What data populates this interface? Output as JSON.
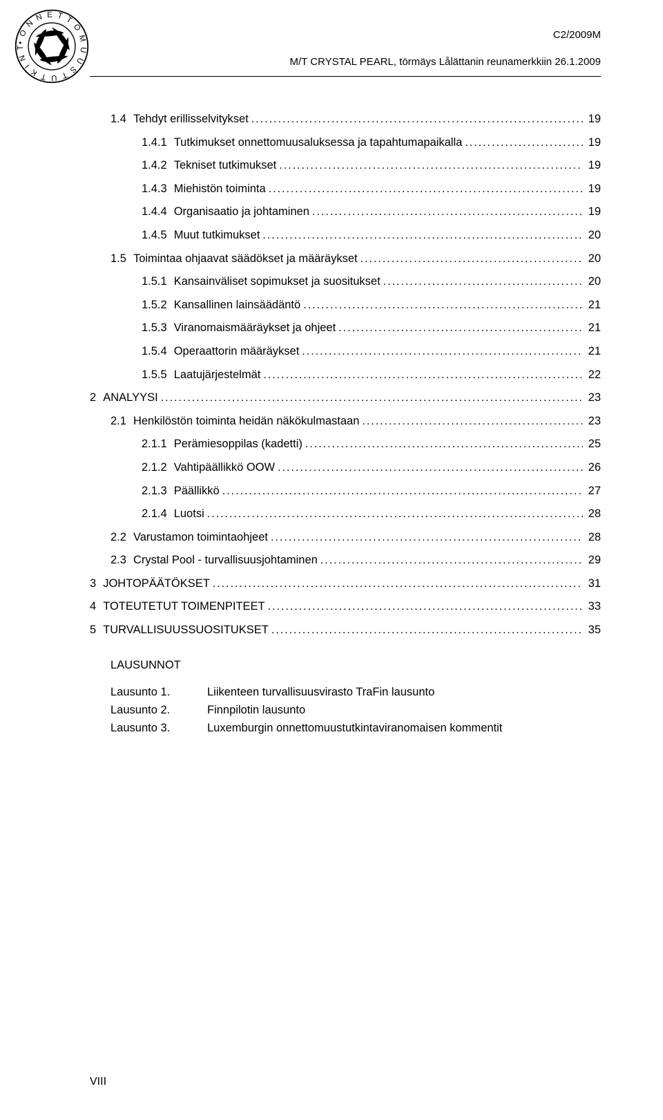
{
  "header": {
    "code": "C2/2009M",
    "title": "M/T CRYSTAL PEARL, törmäys Lålättanin reunamerkkiin 26.1.2009"
  },
  "toc": [
    {
      "level": 1,
      "num": "1.4",
      "label": "Tehdyt erillisselvitykset",
      "page": "19"
    },
    {
      "level": 2,
      "num": "1.4.1",
      "label": "Tutkimukset onnettomuusaluksessa ja tapahtumapaikalla",
      "page": "19"
    },
    {
      "level": 2,
      "num": "1.4.2",
      "label": "Tekniset tutkimukset",
      "page": "19"
    },
    {
      "level": 2,
      "num": "1.4.3",
      "label": "Miehistön toiminta",
      "page": "19"
    },
    {
      "level": 2,
      "num": "1.4.4",
      "label": "Organisaatio ja johtaminen",
      "page": "19"
    },
    {
      "level": 2,
      "num": "1.4.5",
      "label": "Muut tutkimukset",
      "page": "20"
    },
    {
      "level": 1,
      "num": "1.5",
      "label": "Toimintaa ohjaavat säädökset ja määräykset",
      "page": "20"
    },
    {
      "level": 2,
      "num": "1.5.1",
      "label": "Kansainväliset sopimukset ja suositukset",
      "page": "20"
    },
    {
      "level": 2,
      "num": "1.5.2",
      "label": "Kansallinen lainsäädäntö",
      "page": "21"
    },
    {
      "level": 2,
      "num": "1.5.3",
      "label": "Viranomaismääräykset ja ohjeet",
      "page": "21"
    },
    {
      "level": 2,
      "num": "1.5.4",
      "label": "Operaattorin määräykset",
      "page": "21"
    },
    {
      "level": 2,
      "num": "1.5.5",
      "label": "Laatujärjestelmät",
      "page": "22"
    },
    {
      "level": 0,
      "num": "2",
      "label": "ANALYYSI",
      "page": "23"
    },
    {
      "level": 1,
      "num": "2.1",
      "label": "Henkilöstön toiminta heidän näkökulmastaan",
      "page": "23"
    },
    {
      "level": 2,
      "num": "2.1.1",
      "label": "Perämiesoppilas (kadetti)",
      "page": "25"
    },
    {
      "level": 2,
      "num": "2.1.2",
      "label": "Vahtipäällikkö OOW",
      "page": "26"
    },
    {
      "level": 2,
      "num": "2.1.3",
      "label": "Päällikkö",
      "page": "27"
    },
    {
      "level": 2,
      "num": "2.1.4",
      "label": "Luotsi",
      "page": "28"
    },
    {
      "level": 1,
      "num": "2.2",
      "label": "Varustamon toimintaohjeet",
      "page": "28"
    },
    {
      "level": 1,
      "num": "2.3",
      "label": "Crystal Pool - turvallisuusjohtaminen",
      "page": "29"
    },
    {
      "level": 0,
      "num": "3",
      "label": "JOHTOPÄÄTÖKSET",
      "page": "31"
    },
    {
      "level": 0,
      "num": "4",
      "label": "TOTEUTETUT TOIMENPITEET",
      "page": "33"
    },
    {
      "level": 0,
      "num": "5",
      "label": "TURVALLISUUSSUOSITUKSET",
      "page": "35"
    }
  ],
  "lausunnot": {
    "heading": "LAUSUNNOT",
    "items": [
      {
        "key": "Lausunto 1.",
        "text": "Liikenteen turvallisuusvirasto TraFin lausunto"
      },
      {
        "key": "Lausunto 2.",
        "text": "Finnpilotin lausunto"
      },
      {
        "key": "Lausunto 3.",
        "text": "Luxemburgin onnettomuustutkintaviranomaisen kommentit"
      }
    ]
  },
  "pageNumber": "VIII",
  "colors": {
    "text": "#000000",
    "background": "#ffffff",
    "rule": "#000000"
  }
}
